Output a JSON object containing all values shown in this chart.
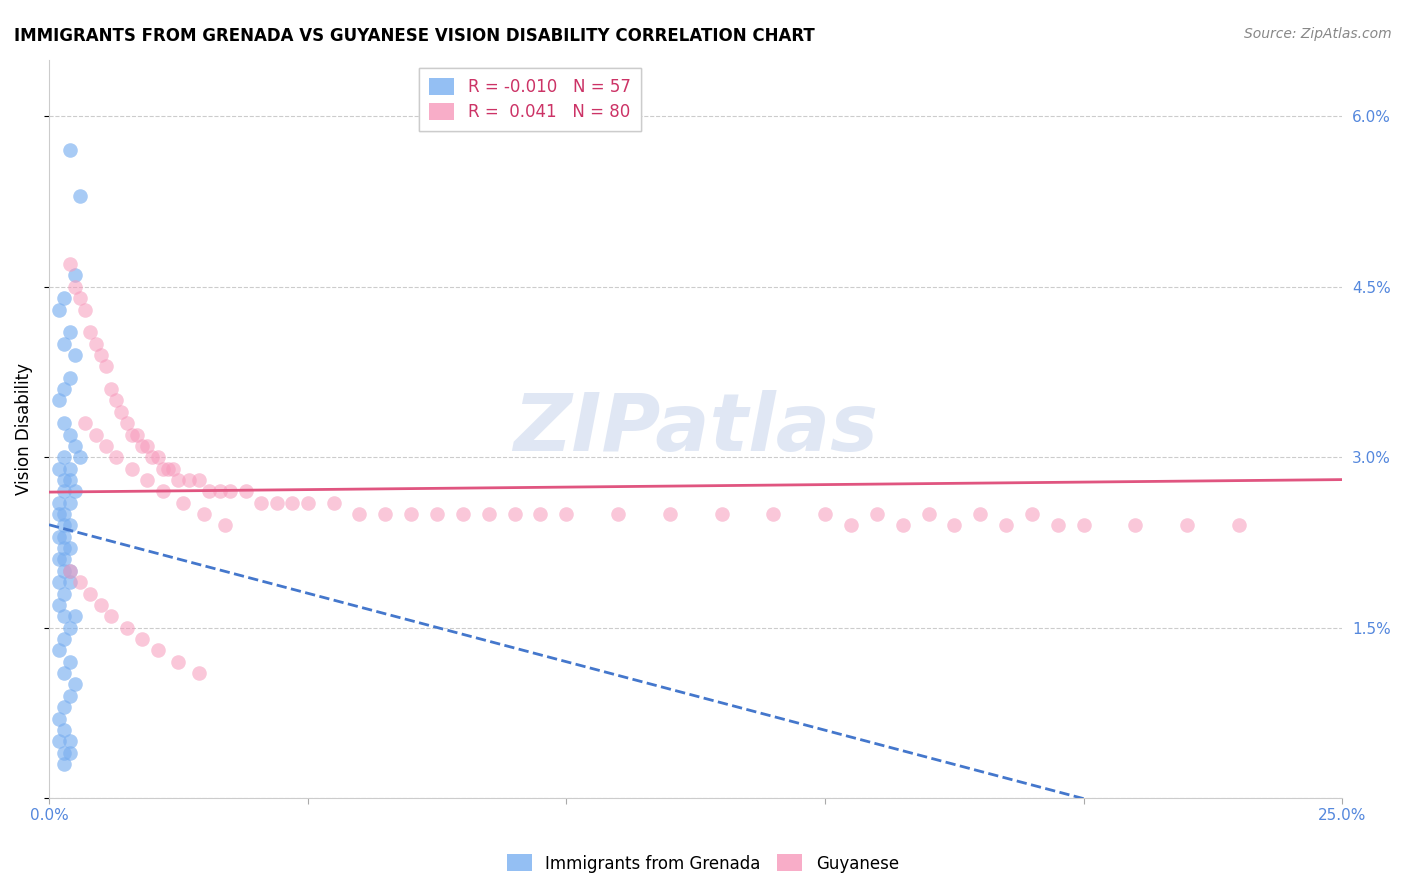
{
  "title": "IMMIGRANTS FROM GRENADA VS GUYANESE VISION DISABILITY CORRELATION CHART",
  "source": "Source: ZipAtlas.com",
  "ylabel": "Vision Disability",
  "xlim": [
    0.0,
    0.25
  ],
  "ylim": [
    0.0,
    0.065
  ],
  "xticks": [
    0.0,
    0.05,
    0.1,
    0.15,
    0.2,
    0.25
  ],
  "xticklabels": [
    "0.0%",
    "",
    "",
    "",
    "",
    "25.0%"
  ],
  "yticks": [
    0.0,
    0.015,
    0.03,
    0.045,
    0.06
  ],
  "yticklabels": [
    "",
    "1.5%",
    "3.0%",
    "4.5%",
    "6.0%"
  ],
  "legend_r1": "R = -0.010",
  "legend_n1": "N = 57",
  "legend_r2": "R =  0.041",
  "legend_n2": "N = 80",
  "legend_labels_bottom": [
    "Immigrants from Grenada",
    "Guyanese"
  ],
  "series1_color": "#7aaff0",
  "series2_color": "#f799bb",
  "trend1_color": "#4477cc",
  "trend2_color": "#e05580",
  "watermark": "ZIPatlas",
  "scatter1_x": [
    0.004,
    0.006,
    0.005,
    0.003,
    0.002,
    0.004,
    0.003,
    0.005,
    0.004,
    0.003,
    0.002,
    0.003,
    0.004,
    0.005,
    0.006,
    0.003,
    0.004,
    0.002,
    0.003,
    0.004,
    0.005,
    0.003,
    0.002,
    0.004,
    0.003,
    0.002,
    0.003,
    0.004,
    0.003,
    0.002,
    0.003,
    0.004,
    0.002,
    0.003,
    0.004,
    0.003,
    0.002,
    0.004,
    0.003,
    0.002,
    0.003,
    0.005,
    0.004,
    0.003,
    0.002,
    0.004,
    0.003,
    0.005,
    0.004,
    0.003,
    0.002,
    0.003,
    0.004,
    0.002,
    0.003,
    0.004,
    0.003
  ],
  "scatter1_y": [
    0.057,
    0.053,
    0.046,
    0.044,
    0.043,
    0.041,
    0.04,
    0.039,
    0.037,
    0.036,
    0.035,
    0.033,
    0.032,
    0.031,
    0.03,
    0.03,
    0.029,
    0.029,
    0.028,
    0.028,
    0.027,
    0.027,
    0.026,
    0.026,
    0.025,
    0.025,
    0.024,
    0.024,
    0.023,
    0.023,
    0.022,
    0.022,
    0.021,
    0.021,
    0.02,
    0.02,
    0.019,
    0.019,
    0.018,
    0.017,
    0.016,
    0.016,
    0.015,
    0.014,
    0.013,
    0.012,
    0.011,
    0.01,
    0.009,
    0.008,
    0.007,
    0.006,
    0.005,
    0.005,
    0.004,
    0.004,
    0.003
  ],
  "scatter2_x": [
    0.004,
    0.005,
    0.006,
    0.007,
    0.008,
    0.009,
    0.01,
    0.011,
    0.012,
    0.013,
    0.014,
    0.015,
    0.016,
    0.017,
    0.018,
    0.019,
    0.02,
    0.021,
    0.022,
    0.023,
    0.024,
    0.025,
    0.027,
    0.029,
    0.031,
    0.033,
    0.035,
    0.038,
    0.041,
    0.044,
    0.047,
    0.05,
    0.055,
    0.06,
    0.065,
    0.07,
    0.075,
    0.08,
    0.085,
    0.09,
    0.095,
    0.1,
    0.11,
    0.12,
    0.13,
    0.14,
    0.15,
    0.16,
    0.17,
    0.18,
    0.19,
    0.2,
    0.21,
    0.22,
    0.23,
    0.155,
    0.165,
    0.175,
    0.185,
    0.195,
    0.007,
    0.009,
    0.011,
    0.013,
    0.016,
    0.019,
    0.022,
    0.026,
    0.03,
    0.034,
    0.004,
    0.006,
    0.008,
    0.01,
    0.012,
    0.015,
    0.018,
    0.021,
    0.025,
    0.029
  ],
  "scatter2_y": [
    0.047,
    0.045,
    0.044,
    0.043,
    0.041,
    0.04,
    0.039,
    0.038,
    0.036,
    0.035,
    0.034,
    0.033,
    0.032,
    0.032,
    0.031,
    0.031,
    0.03,
    0.03,
    0.029,
    0.029,
    0.029,
    0.028,
    0.028,
    0.028,
    0.027,
    0.027,
    0.027,
    0.027,
    0.026,
    0.026,
    0.026,
    0.026,
    0.026,
    0.025,
    0.025,
    0.025,
    0.025,
    0.025,
    0.025,
    0.025,
    0.025,
    0.025,
    0.025,
    0.025,
    0.025,
    0.025,
    0.025,
    0.025,
    0.025,
    0.025,
    0.025,
    0.024,
    0.024,
    0.024,
    0.024,
    0.024,
    0.024,
    0.024,
    0.024,
    0.024,
    0.033,
    0.032,
    0.031,
    0.03,
    0.029,
    0.028,
    0.027,
    0.026,
    0.025,
    0.024,
    0.02,
    0.019,
    0.018,
    0.017,
    0.016,
    0.015,
    0.014,
    0.013,
    0.012,
    0.011
  ]
}
